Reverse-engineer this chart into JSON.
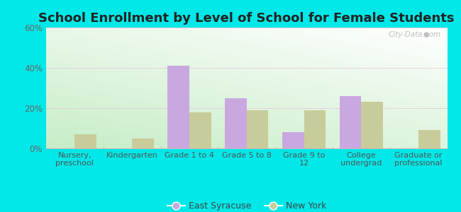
{
  "title": "School Enrollment by Level of School for Female Students",
  "categories": [
    "Nursery,\npreschool",
    "Kindergarten",
    "Grade 1 to 4",
    "Grade 5 to 8",
    "Grade 9 to\n12",
    "College\nundergrad",
    "Graduate or\nprofessional"
  ],
  "east_syracuse": [
    0,
    0,
    41,
    25,
    8,
    26,
    0
  ],
  "new_york": [
    7,
    5,
    18,
    19,
    19,
    23,
    9
  ],
  "ylim": [
    0,
    60
  ],
  "yticks": [
    0,
    20,
    40,
    60
  ],
  "ytick_labels": [
    "0%",
    "20%",
    "40%",
    "60%"
  ],
  "color_east_syracuse": "#c9a8e0",
  "color_new_york": "#c8cc9a",
  "background_outer": "#00e8e8",
  "bar_width": 0.38,
  "legend_labels": [
    "East Syracuse",
    "New York"
  ],
  "title_fontsize": 13,
  "axis_fontsize": 8,
  "tick_fontsize": 8.5,
  "watermark": "City-Data.com"
}
